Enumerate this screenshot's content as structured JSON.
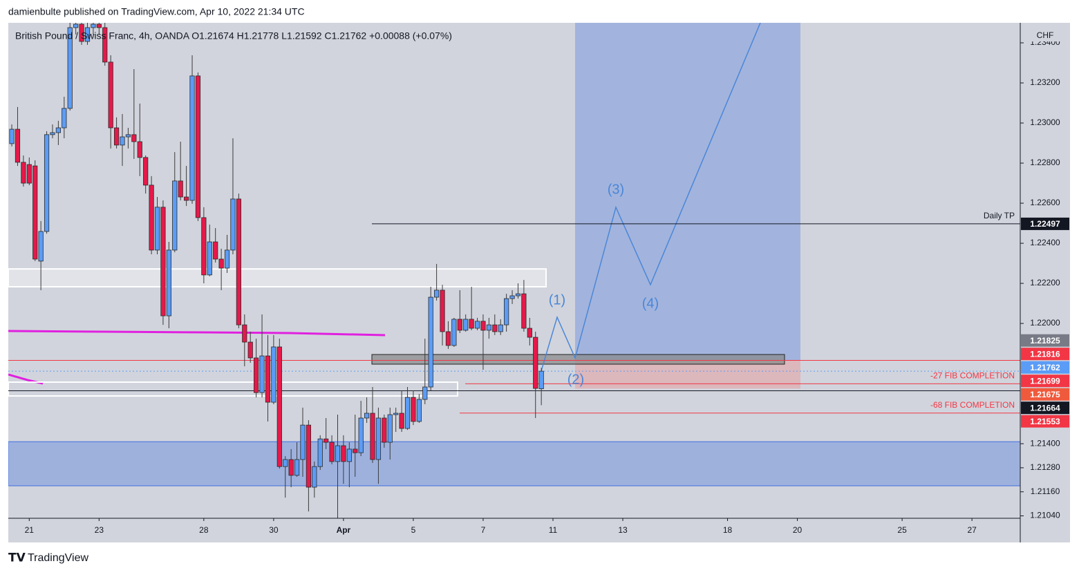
{
  "header": "damienbulte published on TradingView.com, Apr 10, 2022 21:34 UTC",
  "footer": "TradingView",
  "chart_data": {
    "type": "candlestick",
    "legend": "British Pound / Swiss Franc, 4h, OANDA  O1.21674  H1.21778  L1.21592  C1.21762  +0.00088 (+0.07%)",
    "currency": "CHF",
    "up_color": "#5b9cf6",
    "down_color": "#e5194a",
    "xlim": [
      -0.6,
      173.3
    ],
    "ylim": [
      1.21028,
      1.235
    ],
    "xticks": [
      {
        "value": 3,
        "label": "21"
      },
      {
        "value": 15,
        "label": "23"
      },
      {
        "value": 33,
        "label": "28"
      },
      {
        "value": 45,
        "label": "30"
      },
      {
        "value": 57,
        "label": "Apr"
      },
      {
        "value": 69,
        "label": "5"
      },
      {
        "value": 81,
        "label": "7"
      },
      {
        "value": 93,
        "label": "11"
      },
      {
        "value": 105,
        "label": "13"
      },
      {
        "value": 123,
        "label": "18"
      },
      {
        "value": 135,
        "label": "20"
      },
      {
        "value": 153,
        "label": "25"
      },
      {
        "value": 165,
        "label": "27"
      }
    ],
    "yticks": [
      {
        "value": 1.234,
        "label": "1.23400"
      },
      {
        "value": 1.232,
        "label": "1.23200"
      },
      {
        "value": 1.23,
        "label": "1.23000"
      },
      {
        "value": 1.228,
        "label": "1.22800"
      },
      {
        "value": 1.226,
        "label": "1.22600"
      },
      {
        "value": 1.224,
        "label": "1.22400"
      },
      {
        "value": 1.222,
        "label": "1.22200"
      },
      {
        "value": 1.22,
        "label": "1.22000"
      },
      {
        "value": 1.214,
        "label": "1.21400"
      },
      {
        "value": 1.2128,
        "label": "1.21280"
      },
      {
        "value": 1.2116,
        "label": "1.21160"
      },
      {
        "value": 1.2104,
        "label": "1.21040"
      }
    ],
    "open": [
      1.22897,
      1.22969,
      1.22804,
      1.22793,
      1.22786,
      1.22311,
      1.22459,
      1.22942,
      1.22952,
      1.22976,
      1.23073,
      1.23476,
      1.23493,
      1.23407,
      1.23476,
      1.23493,
      1.23476,
      1.23304,
      1.22976,
      1.2289,
      1.22931,
      1.22942,
      1.22907,
      1.22828,
      1.2269,
      1.22366,
      1.2258,
      1.22038,
      1.22366,
      1.22711,
      1.22631,
      1.22614,
      1.23235,
      1.22528,
      1.22242,
      1.22407,
      1.22321,
      1.22276,
      1.22366,
      1.22621,
      1.21993,
      1.21907,
      1.21828,
      1.21655,
      1.21838,
      1.21607,
      1.21883,
      1.21286,
      1.21321,
      1.21242,
      1.21321,
      1.21493,
      1.21183,
      1.21286,
      1.21424,
      1.21407,
      1.21311,
      1.2139,
      1.21311,
      1.21373,
      1.21355,
      1.21528,
      1.21552,
      1.21321,
      1.21528,
      1.21407,
      1.21545,
      1.21552,
      1.21476,
      1.21631,
      1.21511,
      1.21621,
      1.21683,
      1.22131,
      1.22166,
      1.21959,
      1.2189,
      1.22021,
      1.21966,
      1.22021,
      1.21976,
      1.22011,
      1.21966,
      1.21993,
      1.21959,
      1.21993,
      1.22124,
      1.22138,
      1.22148,
      1.21976,
      1.21931,
      1.21674
    ],
    "high": [
      1.22993,
      1.2308,
      1.22838,
      1.22828,
      1.22814,
      1.22511,
      1.22959,
      1.22993,
      1.23011,
      1.23131,
      1.23511,
      1.23511,
      1.23511,
      1.23511,
      1.23511,
      1.23511,
      1.23511,
      1.23338,
      1.23028,
      1.23045,
      1.22976,
      1.23269,
      1.23097,
      1.22838,
      1.22735,
      1.22631,
      1.22614,
      1.22407,
      1.22855,
      1.22907,
      1.22786,
      1.23338,
      1.23252,
      1.2258,
      1.22493,
      1.22476,
      1.22373,
      1.22442,
      1.22924,
      1.22648,
      1.22045,
      1.21959,
      1.21924,
      1.22045,
      1.21942,
      1.21942,
      1.21924,
      1.21338,
      1.21373,
      1.21407,
      1.2158,
      1.21517,
      1.21311,
      1.21442,
      1.21528,
      1.21442,
      1.21545,
      1.21442,
      1.21407,
      1.21545,
      1.21614,
      1.21631,
      1.21683,
      1.2158,
      1.21545,
      1.2158,
      1.2158,
      1.21666,
      1.21683,
      1.21666,
      1.21648,
      1.21924,
      1.22183,
      1.22297,
      1.22193,
      1.22011,
      1.22028,
      1.22166,
      1.22045,
      1.22183,
      1.22028,
      1.22045,
      1.22028,
      1.22045,
      1.22021,
      1.22148,
      1.22166,
      1.222,
      1.22217,
      1.22028,
      1.21959,
      1.21778
    ],
    "low": [
      1.22883,
      1.22786,
      1.22683,
      1.2269,
      1.22311,
      1.22166,
      1.22448,
      1.22924,
      1.2289,
      1.22924,
      1.23062,
      1.23442,
      1.2339,
      1.2339,
      1.23442,
      1.23442,
      1.23286,
      1.22873,
      1.22873,
      1.22786,
      1.22873,
      1.22821,
      1.22735,
      1.22648,
      1.22345,
      1.22345,
      1.21993,
      1.21976,
      1.22355,
      1.22614,
      1.22586,
      1.22597,
      1.22511,
      1.222,
      1.22235,
      1.22304,
      1.22166,
      1.22252,
      1.22345,
      1.21976,
      1.21786,
      1.21804,
      1.21631,
      1.21631,
      1.21511,
      1.21597,
      1.21276,
      1.21131,
      1.21183,
      1.21235,
      1.21235,
      1.21062,
      1.21131,
      1.21269,
      1.21373,
      1.21297,
      1.21028,
      1.212,
      1.21183,
      1.21235,
      1.21338,
      1.21504,
      1.21304,
      1.212,
      1.2138,
      1.21321,
      1.21459,
      1.21459,
      1.21469,
      1.21493,
      1.21504,
      1.21597,
      1.21666,
      1.22114,
      1.2189,
      1.21873,
      1.21883,
      1.21952,
      1.21959,
      1.21966,
      1.21966,
      1.21769,
      1.21924,
      1.21942,
      1.21942,
      1.21959,
      1.22097,
      1.22124,
      1.21959,
      1.2189,
      1.21528,
      1.21592
    ],
    "close": [
      1.22969,
      1.22804,
      1.227,
      1.227,
      1.22321,
      1.22459,
      1.22942,
      1.22952,
      1.22976,
      1.23073,
      1.23476,
      1.23493,
      1.23407,
      1.23476,
      1.23493,
      1.23476,
      1.23304,
      1.22976,
      1.2289,
      1.22931,
      1.22942,
      1.22907,
      1.22828,
      1.2269,
      1.22366,
      1.2258,
      1.22038,
      1.22366,
      1.22711,
      1.22631,
      1.22614,
      1.23235,
      1.22528,
      1.22242,
      1.22407,
      1.22321,
      1.22276,
      1.22366,
      1.22621,
      1.21993,
      1.21907,
      1.21828,
      1.21655,
      1.21838,
      1.21607,
      1.21883,
      1.21286,
      1.21321,
      1.21242,
      1.21321,
      1.21493,
      1.21183,
      1.21286,
      1.21424,
      1.21407,
      1.21311,
      1.2139,
      1.21311,
      1.21373,
      1.21355,
      1.21528,
      1.21552,
      1.21321,
      1.21528,
      1.21407,
      1.21545,
      1.21552,
      1.21476,
      1.21631,
      1.21511,
      1.21621,
      1.21683,
      1.22131,
      1.22166,
      1.21959,
      1.2189,
      1.22021,
      1.21966,
      1.22021,
      1.21976,
      1.22011,
      1.21966,
      1.21993,
      1.21959,
      1.21993,
      1.22124,
      1.22138,
      1.22148,
      1.21976,
      1.21931,
      1.21676,
      1.21762
    ],
    "levels": [
      {
        "value": 1.22497,
        "label": "Daily TP",
        "color": "#131722"
      },
      {
        "value": 1.21825,
        "color": "#787b86"
      },
      {
        "value": 1.21816,
        "color": "#f23645"
      },
      {
        "value": 1.21762,
        "color": "#5b9cf6"
      },
      {
        "value": 1.21699,
        "label": "-27 FIB COMPLETION",
        "color": "#f23645"
      },
      {
        "value": 1.21675,
        "color": "#f05a3c"
      },
      {
        "value": 1.21664,
        "color": "#131722"
      },
      {
        "value": 1.21553,
        "label": "-68 FIB COMPLETION",
        "color": "#f23645"
      }
    ],
    "zones": [
      {
        "from": 1.2141,
        "to": 1.2119,
        "color": "#3f6fe0"
      },
      {
        "from": 1.22272,
        "to": 1.22183,
        "color": "#ffffff"
      }
    ],
    "waves": [
      "(1)",
      "(2)",
      "(3)",
      "(4)"
    ]
  }
}
